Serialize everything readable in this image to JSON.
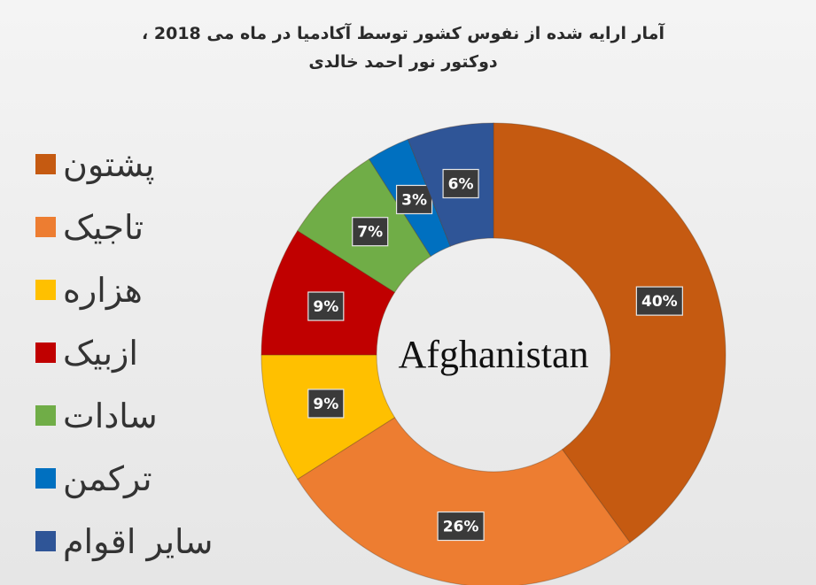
{
  "chart_data": {
    "type": "pie",
    "subtype": "donut",
    "title": "آمار ارایه شده از نفوس کشور توسط آکادمیا در ماه می 2018 ،",
    "subtitle": "دوکتور نور احمد خالدی",
    "center_label": "Afghanistan",
    "legend_position": "left",
    "categories": [
      "پشتون",
      "تاجیک",
      "هزاره",
      "ازبیک",
      "سادات",
      "ترکمن",
      "سایر اقوام"
    ],
    "values": [
      40,
      26,
      9,
      9,
      7,
      3,
      6
    ],
    "value_labels": [
      "40%",
      "26%",
      "9%",
      "9%",
      "7%",
      "3%",
      "6%"
    ],
    "colors": [
      "#c55a11",
      "#ed7d31",
      "#ffc000",
      "#c00000",
      "#70ad47",
      "#0070c0",
      "#2f5597"
    ]
  }
}
